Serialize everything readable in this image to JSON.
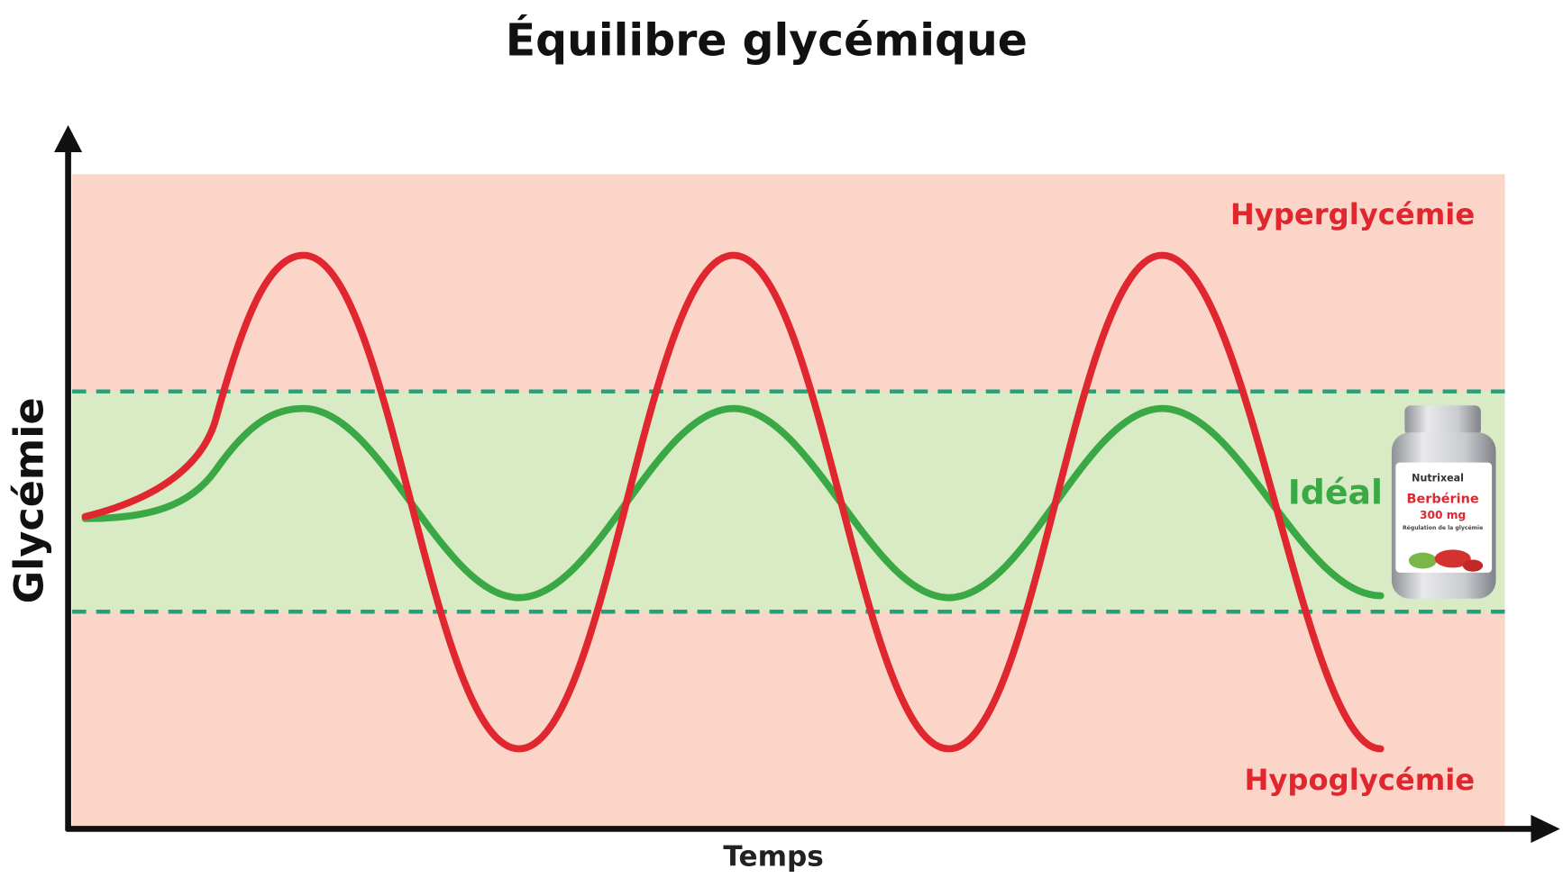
{
  "title": "Équilibre glycémique",
  "axes": {
    "y_label": "Glycémie",
    "x_label": "Temps"
  },
  "zones": {
    "high": "Hyperglycémie",
    "ideal": "Idéal",
    "low": "Hypoglycémie"
  },
  "product": {
    "brand": "Nutrixeal",
    "name": "Berbérine",
    "dose": "300 mg",
    "tagline": "Régulation de la glycémie"
  }
}
